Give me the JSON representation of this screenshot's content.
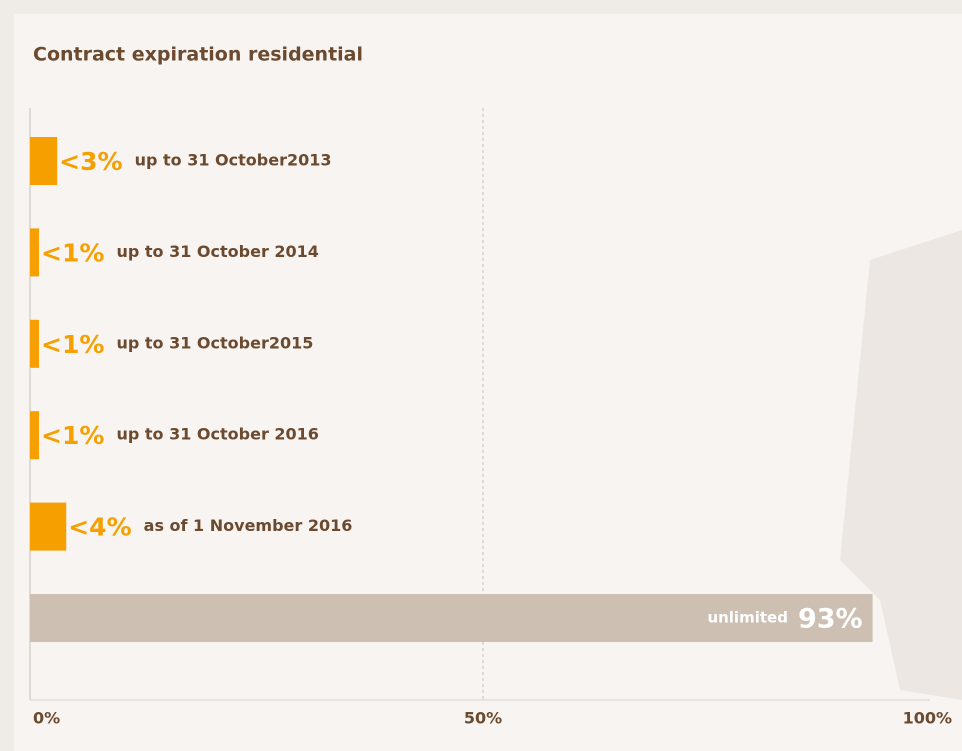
{
  "chart_data": {
    "type": "bar",
    "orientation": "horizontal",
    "title": "Contract expiration residential",
    "categories": [
      "up to 31 October2013",
      "up to 31 October 2014",
      "up to 31 October2015",
      "up to 31 October 2016",
      "as of 1 November 2016",
      "unlimited"
    ],
    "values": [
      3,
      1,
      1,
      1,
      4,
      93
    ],
    "value_labels": [
      "<3%",
      "<1%",
      "<1%",
      "<1%",
      "<4%",
      "93%"
    ],
    "colors": [
      "#f5a000",
      "#f5a000",
      "#f5a000",
      "#f5a000",
      "#f5a000",
      "#cdc0b3"
    ],
    "xlim": [
      0,
      100
    ],
    "xticks": [
      {
        "value": 0,
        "label": "0%"
      },
      {
        "value": 50,
        "label": "50%"
      },
      {
        "value": 100,
        "label": "100%"
      }
    ],
    "grid": true
  }
}
